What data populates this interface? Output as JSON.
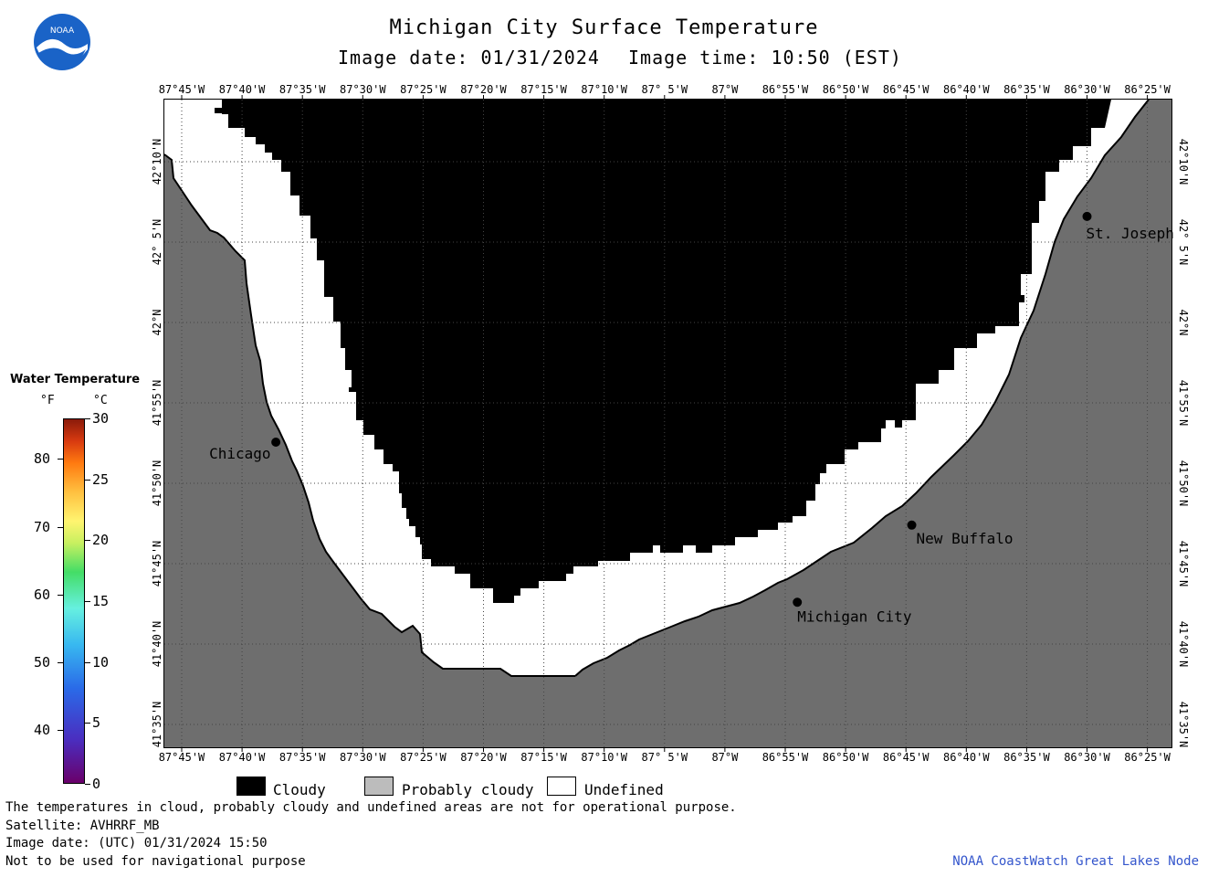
{
  "title": "Michigan City Surface Temperature",
  "image_date": "Image date: 01/31/2024",
  "image_time": "Image time: 10:50 (EST)",
  "lon_ticks": [
    "87°45'W",
    "87°40'W",
    "87°35'W",
    "87°30'W",
    "87°25'W",
    "87°20'W",
    "87°15'W",
    "87°10'W",
    "87° 5'W",
    "87°W",
    "86°55'W",
    "86°50'W",
    "86°45'W",
    "86°40'W",
    "86°35'W",
    "86°30'W",
    "86°25'W"
  ],
  "lat_ticks": [
    "42°10'N",
    "42° 5'N",
    "42°N",
    "41°55'N",
    "41°50'N",
    "41°45'N",
    "41°40'N",
    "41°35'N"
  ],
  "cities": [
    {
      "name": "Chicago",
      "lon": -87.62,
      "lat": 41.876
    },
    {
      "name": "St. Joseph",
      "lon": -86.5,
      "lat": 42.11
    },
    {
      "name": "New Buffalo",
      "lon": -86.742,
      "lat": 41.79
    },
    {
      "name": "Michigan City",
      "lon": -86.9,
      "lat": 41.71
    }
  ],
  "colorbar": {
    "title": "Water Temperature",
    "unit_f": "°F",
    "unit_c": "°C",
    "f_labels": [
      "40",
      "50",
      "60",
      "70",
      "80"
    ],
    "c_labels": [
      "0",
      "5",
      "10",
      "15",
      "20",
      "25",
      "30"
    ]
  },
  "legend": [
    {
      "label": "Cloudy",
      "color": "#000000"
    },
    {
      "label": "Probably cloudy",
      "color": "#bcbcbc"
    },
    {
      "label": "Undefined",
      "color": "#ffffff"
    }
  ],
  "footer": {
    "line1": "The temperatures in cloud, probably cloudy and undefined areas are not for operational purpose.",
    "line2": "Satellite: AVHRRF_MB",
    "line3": "Image date: (UTC) 01/31/2024  15:50",
    "line4": "Not to be used for navigational purpose",
    "credit": "NOAA CoastWatch Great Lakes Node"
  },
  "colors": {
    "land": "#6e6e6e",
    "cloud": "#000000",
    "undefined": "#ffffff"
  }
}
